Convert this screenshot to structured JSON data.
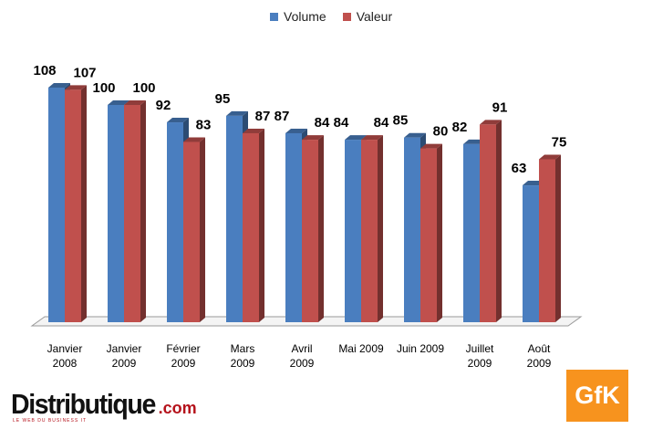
{
  "legend": {
    "volume": "Volume",
    "valeur": "Valeur"
  },
  "chart_data": {
    "type": "bar",
    "categories": [
      [
        "Janvier",
        "2008"
      ],
      [
        "Janvier",
        "2009"
      ],
      [
        "Février",
        "2009"
      ],
      [
        "Mars",
        "2009"
      ],
      [
        "Avril",
        "2009"
      ],
      [
        "Mai 2009",
        ""
      ],
      [
        "Juin 2009",
        ""
      ],
      [
        "Juillet",
        "2009"
      ],
      [
        "Août",
        "2009"
      ]
    ],
    "series": [
      {
        "name": "Volume",
        "values": [
          108,
          100,
          92,
          95,
          87,
          84,
          85,
          82,
          63
        ],
        "color": "#4a7ebf"
      },
      {
        "name": "Valeur",
        "values": [
          107,
          100,
          83,
          87,
          84,
          84,
          80,
          91,
          75
        ],
        "color": "#c0504d"
      }
    ],
    "ylim": [
      0,
      110
    ],
    "grid": false,
    "legend_position": "top",
    "style": "3d-column"
  },
  "logos": {
    "distributique_main": "Distributique",
    "distributique_suffix": ".com",
    "distributique_tagline": "LE WEB DU BUSINESS IT",
    "gfk": "GfK"
  }
}
